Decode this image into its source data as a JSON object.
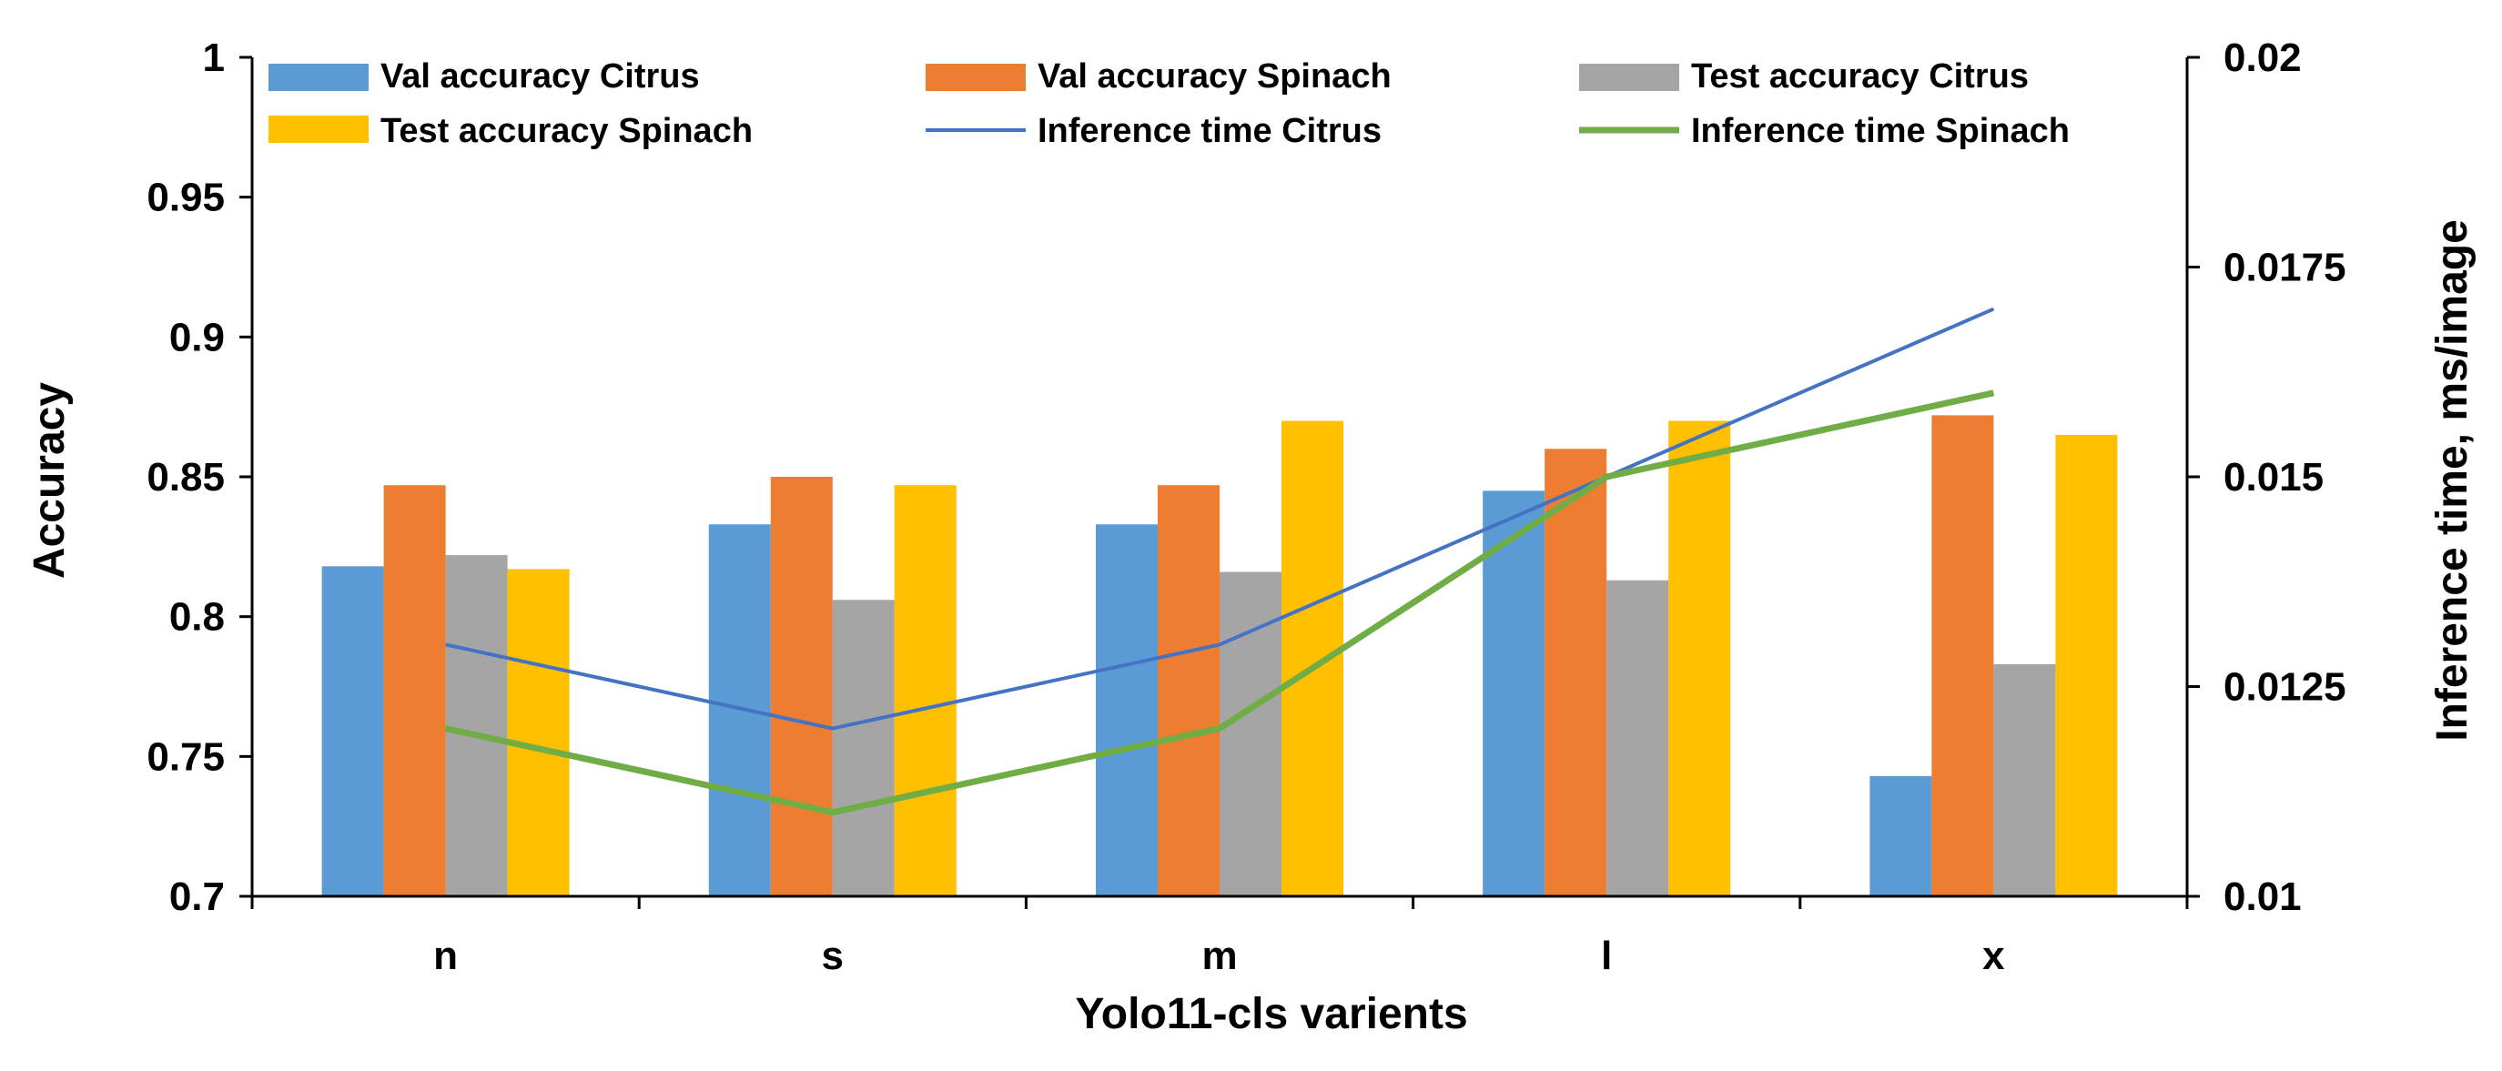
{
  "chart_data": {
    "type": "bar",
    "title": "",
    "categories": [
      "n",
      "s",
      "m",
      "l",
      "x"
    ],
    "xlabel": "Yolo11-cls varients",
    "ylabel": "Accuracy",
    "y2label": "Inference time, ms/image",
    "ylim": [
      0.7,
      1.0
    ],
    "y2lim": [
      0.01,
      0.02
    ],
    "yticks": [
      "0.7",
      "0.75",
      "0.8",
      "0.85",
      "0.9",
      "0.95",
      "1"
    ],
    "y2ticks": [
      "0.01",
      "0.0125",
      "0.015",
      "0.0175",
      "0.02"
    ],
    "legend_position": "top",
    "series": [
      {
        "name": "Val accuracy Citrus",
        "kind": "bar",
        "axis": "left",
        "color": "#5B9BD5",
        "values": [
          0.818,
          0.833,
          0.833,
          0.845,
          0.743
        ]
      },
      {
        "name": "Val accuracy Spinach",
        "kind": "bar",
        "axis": "left",
        "color": "#ED7D31",
        "values": [
          0.847,
          0.85,
          0.847,
          0.86,
          0.872
        ]
      },
      {
        "name": "Test accuracy Citrus",
        "kind": "bar",
        "axis": "left",
        "color": "#A5A5A5",
        "values": [
          0.822,
          0.806,
          0.816,
          0.813,
          0.783
        ]
      },
      {
        "name": "Test accuracy Spinach",
        "kind": "bar",
        "axis": "left",
        "color": "#FFC000",
        "values": [
          0.817,
          0.847,
          0.87,
          0.87,
          0.865
        ]
      },
      {
        "name": "Inference time Citrus",
        "kind": "line",
        "axis": "right",
        "color": "#4472C4",
        "values": [
          0.013,
          0.012,
          0.013,
          0.015,
          0.017
        ]
      },
      {
        "name": "Inference time Spinach",
        "kind": "line",
        "axis": "right",
        "color": "#70AD47",
        "values": [
          0.012,
          0.011,
          0.012,
          0.015,
          0.016
        ]
      }
    ]
  }
}
